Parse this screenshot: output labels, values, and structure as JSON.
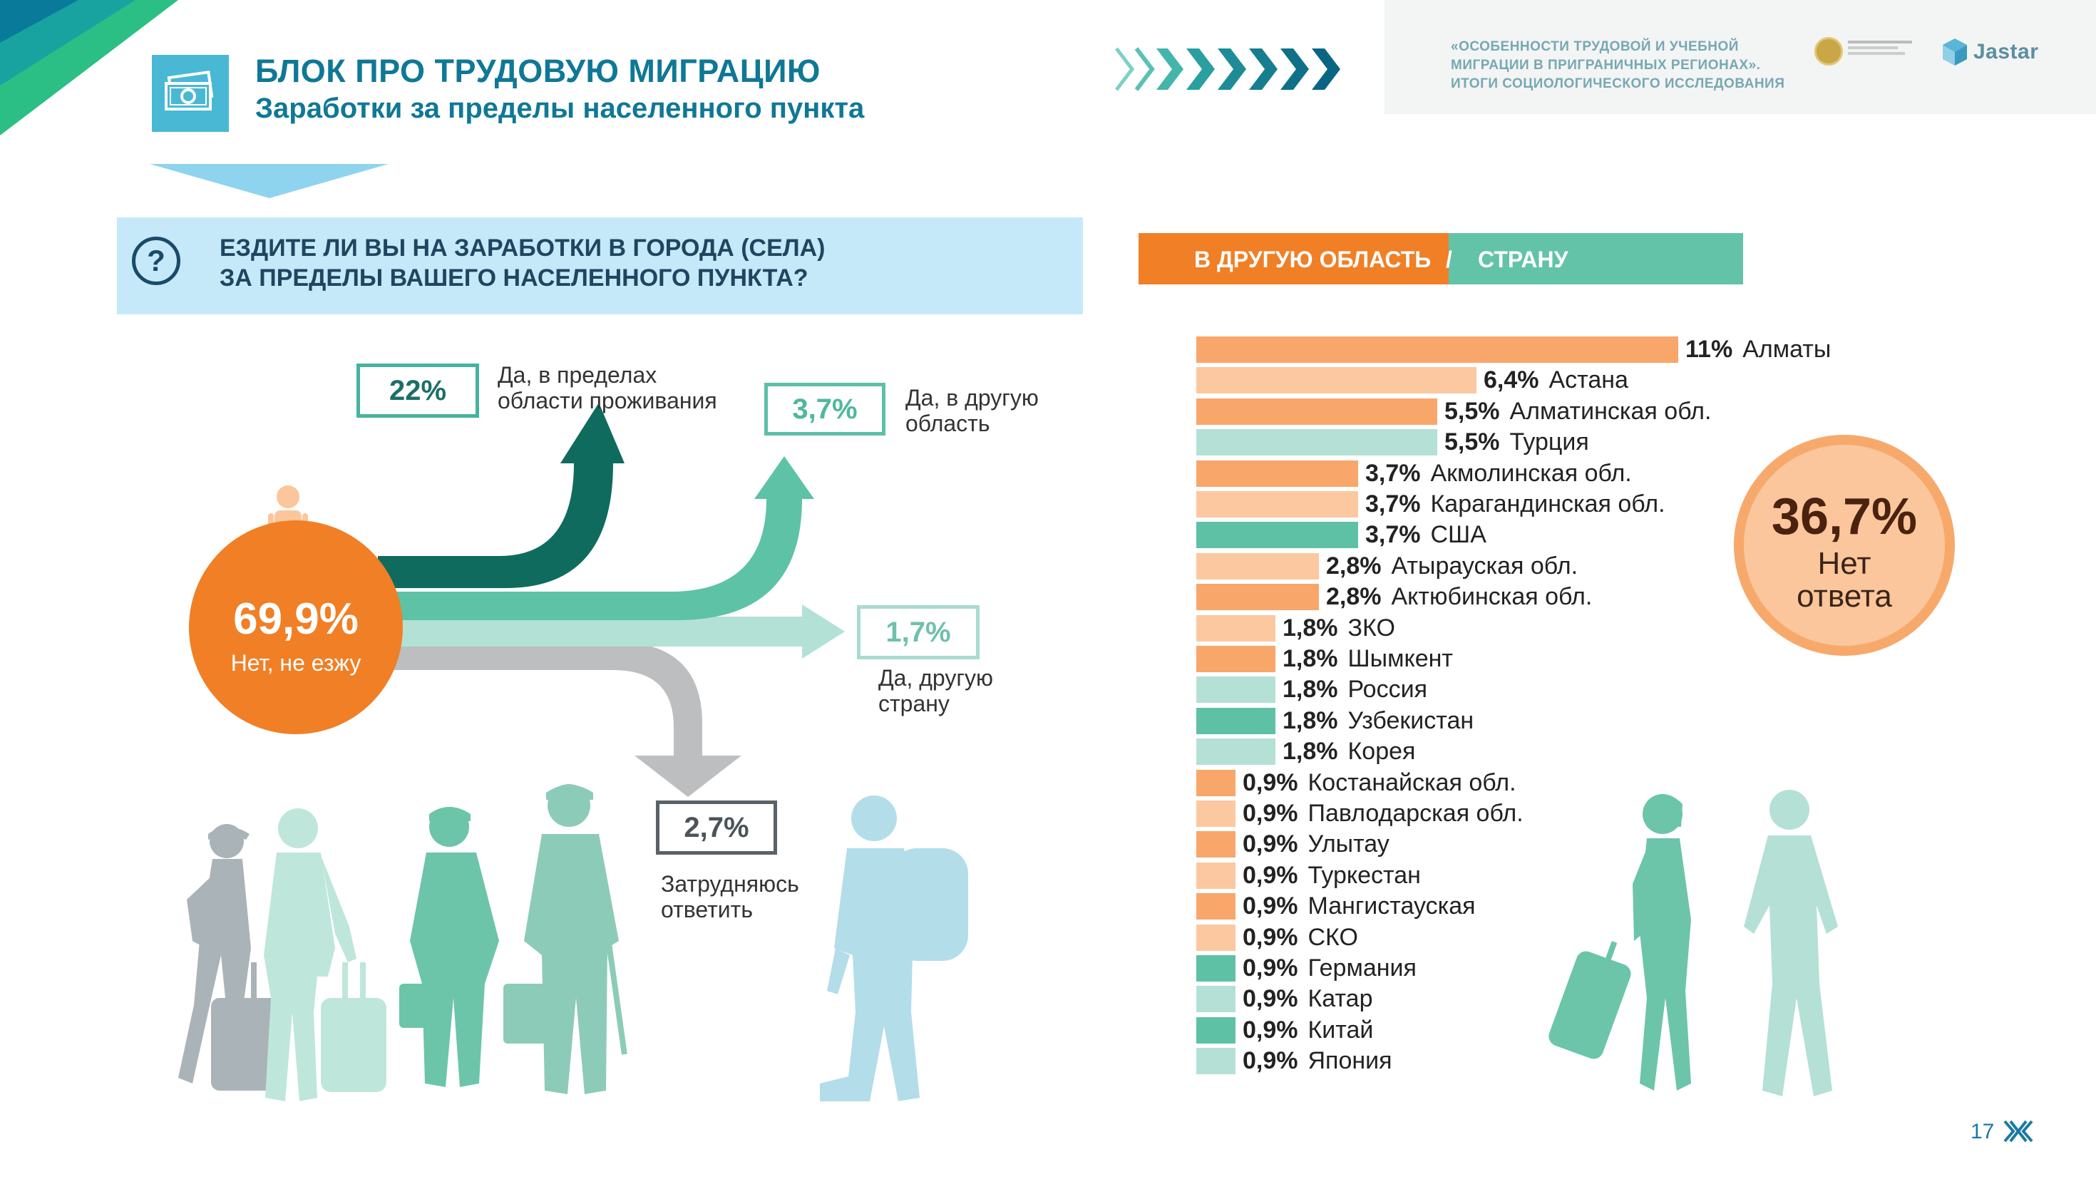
{
  "header": {
    "title": "БЛОК ПРО ТРУДОВУЮ МИГРАЦИЮ",
    "subtitle": "Заработки за пределы населенного пункта",
    "study_title_line1": "«ОСОБЕННОСТИ ТРУДОВОЙ И УЧЕБНОЙ",
    "study_title_line2": "МИГРАЦИИ В ПРИГРАНИЧНЫХ РЕГИОНАХ».",
    "study_title_line3": "ИТОГИ СОЦИОЛОГИЧЕСКОГО ИССЛЕДОВАНИЯ",
    "jastar_logo_text": "Jastar"
  },
  "question": {
    "line1": "ЕЗДИТЕ ЛИ ВЫ НА ЗАРАБОТКИ В ГОРОДА (СЕЛА)",
    "line2": "ЗА ПРЕДЕЛЫ ВАШЕГО НАСЕЛЕННОГО ПУНКТА?",
    "icon_glyph": "?"
  },
  "flow": {
    "no": {
      "percent": "69,9%",
      "label": "Нет, не езжу"
    },
    "within_region": {
      "percent": "22%",
      "label_line1": "Да, в пределах",
      "label_line2": "области проживания"
    },
    "other_region": {
      "percent": "3,7%",
      "label_line1": "Да, в другую",
      "label_line2": "область"
    },
    "other_country": {
      "percent": "1,7%",
      "label_line1": "Да, другую",
      "label_line2": "страну"
    },
    "hard_to_say": {
      "percent": "2,7%",
      "label_line1": "Затрудняюсь",
      "label_line2": "ответить"
    }
  },
  "destinations": {
    "header_region": "В ДРУГУЮ ОБЛАСТЬ",
    "header_slash": "/",
    "header_country": "СТРАНУ",
    "no_answer": {
      "percent": "36,7%",
      "label_line1": "Нет",
      "label_line2": "ответа"
    }
  },
  "chart_data": {
    "type": "bar",
    "orientation": "horizontal",
    "categories": [
      "Алматы",
      "Астана",
      "Алматинская обл.",
      "Турция",
      "Акмолинская обл.",
      "Карагандинская обл.",
      "США",
      "Атырауская обл.",
      "Актюбинская обл.",
      "ЗКО",
      "Шымкент",
      "Россия",
      "Узбекистан",
      "Корея",
      "Костанайская обл.",
      "Павлодарская обл.",
      "Улытау",
      "Туркестан",
      "Мангистауская",
      "СКО",
      "Германия",
      "Катар",
      "Китай",
      "Япония"
    ],
    "values": [
      11,
      6.4,
      5.5,
      5.5,
      3.7,
      3.7,
      3.7,
      2.8,
      2.8,
      1.8,
      1.8,
      1.8,
      1.8,
      1.8,
      0.9,
      0.9,
      0.9,
      0.9,
      0.9,
      0.9,
      0.9,
      0.9,
      0.9,
      0.9
    ],
    "value_labels": [
      "11%",
      "6,4%",
      "5,5%",
      "5,5%",
      "3,7%",
      "3,7%",
      "3,7%",
      "2,8%",
      "2,8%",
      "1,8%",
      "1,8%",
      "1,8%",
      "1,8%",
      "1,8%",
      "0,9%",
      "0,9%",
      "0,9%",
      "0,9%",
      "0,9%",
      "0,9%",
      "0,9%",
      "0,9%",
      "0,9%",
      "0,9%"
    ],
    "bar_colors": [
      "#f8a66a",
      "#fcc8a0",
      "#f8a66a",
      "#b4e0d6",
      "#f8a66a",
      "#fcc8a0",
      "#5ec1a6",
      "#fcc8a0",
      "#f8a66a",
      "#fcc8a0",
      "#f8a66a",
      "#b4e0d6",
      "#5ec1a6",
      "#b4e0d6",
      "#f8a66a",
      "#fcc8a0",
      "#f8a66a",
      "#fcc8a0",
      "#f8a66a",
      "#fcc8a0",
      "#5ec1a6",
      "#b4e0d6",
      "#5ec1a6",
      "#b4e0d6"
    ],
    "xlim": [
      0,
      11
    ]
  },
  "page": {
    "number": "17"
  }
}
